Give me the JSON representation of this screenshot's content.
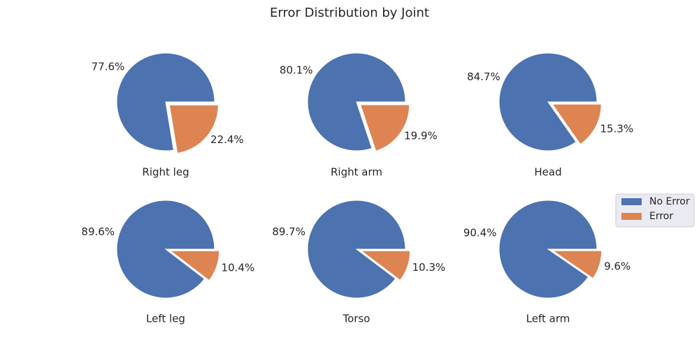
{
  "chart_data": {
    "type": "pie",
    "title": "Error Distribution by Joint",
    "legend": {
      "placement": "right",
      "entries": [
        "No Error",
        "Error"
      ]
    },
    "colors": {
      "No Error": "#4c72b0",
      "Error": "#dd8452"
    },
    "explode": [
      0,
      0.1
    ],
    "start_angle_deg": 0,
    "pies": [
      {
        "label": "Right leg",
        "slices": [
          {
            "name": "No Error",
            "value": 77.6,
            "label": "77.6%"
          },
          {
            "name": "Error",
            "value": 22.4,
            "label": "22.4%"
          }
        ]
      },
      {
        "label": "Right arm",
        "slices": [
          {
            "name": "No Error",
            "value": 80.1,
            "label": "80.1%"
          },
          {
            "name": "Error",
            "value": 19.9,
            "label": "19.9%"
          }
        ]
      },
      {
        "label": "Head",
        "slices": [
          {
            "name": "No Error",
            "value": 84.7,
            "label": "84.7%"
          },
          {
            "name": "Error",
            "value": 15.3,
            "label": "15.3%"
          }
        ]
      },
      {
        "label": "Left leg",
        "slices": [
          {
            "name": "No Error",
            "value": 89.6,
            "label": "89.6%"
          },
          {
            "name": "Error",
            "value": 10.4,
            "label": "10.4%"
          }
        ]
      },
      {
        "label": "Torso",
        "slices": [
          {
            "name": "No Error",
            "value": 89.7,
            "label": "89.7%"
          },
          {
            "name": "Error",
            "value": 10.3,
            "label": "10.3%"
          }
        ]
      },
      {
        "label": "Left arm",
        "slices": [
          {
            "name": "No Error",
            "value": 90.4,
            "label": "90.4%"
          },
          {
            "name": "Error",
            "value": 9.6,
            "label": "9.6%"
          }
        ]
      }
    ]
  }
}
